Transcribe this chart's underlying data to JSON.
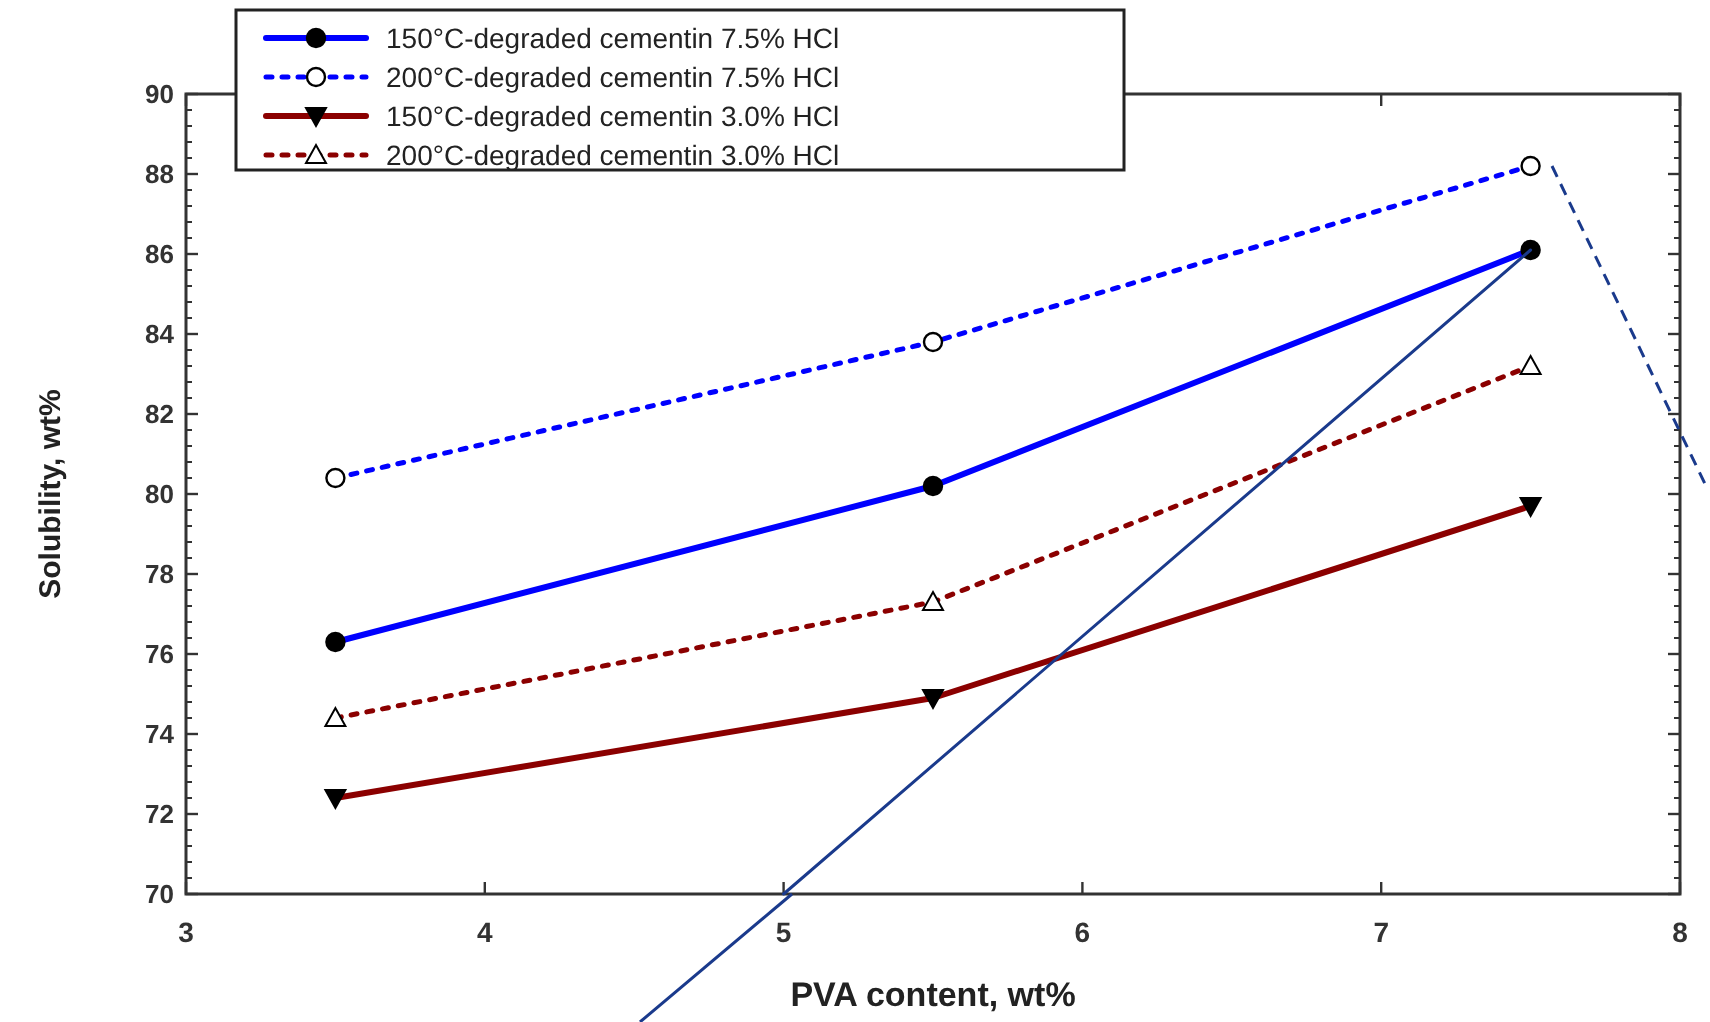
{
  "chart_data": {
    "type": "line",
    "xlabel": "PVA content, wt%",
    "ylabel": "Solubility, wt%",
    "x": [
      3.5,
      5.5,
      7.5
    ],
    "series": [
      {
        "name": "150°C-degraded cementin 7.5% HCl",
        "color": "#0000ff",
        "values": [
          76.3,
          80.2,
          86.1
        ],
        "marker": "circle",
        "line_style": "solid"
      },
      {
        "name": "200°C-degraded cementin 7.5% HCl",
        "color": "#0000ff",
        "values": [
          80.4,
          83.8,
          88.2
        ],
        "marker": "circle",
        "line_style": "dotted"
      },
      {
        "name": "150°C-degraded cementin 3.0% HCl",
        "color": "#8b0000",
        "values": [
          72.4,
          74.9,
          79.7
        ],
        "marker": "triangle",
        "line_style": "solid"
      },
      {
        "name": "200°C-degraded cementin 3.0% HCl",
        "color": "#8b0000",
        "values": [
          74.4,
          77.3,
          83.2
        ],
        "marker": "triangle",
        "line_style": "dotted"
      },
      {
        "color": "#1a3a8c",
        "x": [
          5.0,
          7.5
        ],
        "values": [
          70,
          86.1
        ],
        "marker": "none",
        "line_style": "solid"
      }
    ],
    "xlim": [
      3,
      8
    ],
    "xticks": [
      3,
      4,
      5,
      6,
      7,
      8
    ],
    "ylim": [
      70,
      90
    ],
    "yticks": [
      70,
      72,
      74,
      76,
      78,
      80,
      82,
      84,
      86,
      88,
      90
    ],
    "grid": false,
    "legend": "top left"
  }
}
